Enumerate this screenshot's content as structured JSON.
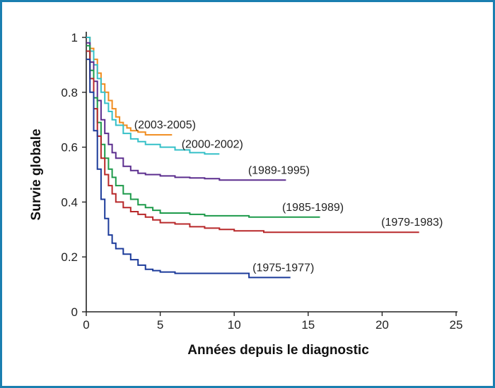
{
  "chart_data": {
    "type": "line",
    "title": "",
    "xlabel": "Années depuis le diagnostic",
    "ylabel": "Survie globale",
    "xlim": [
      0,
      25
    ],
    "ylim": [
      0,
      1
    ],
    "xticks": [
      0,
      5,
      10,
      15,
      20,
      25
    ],
    "yticks": [
      0,
      0.2,
      0.4,
      0.6,
      0.8,
      1
    ],
    "ytick_labels": [
      "0",
      "0.2",
      "0.4",
      "0.6",
      "0.8",
      "1"
    ],
    "grid": false,
    "legend": "none (series labelled inline at line ends)",
    "step": true,
    "series": [
      {
        "name": "(2003-2005)",
        "color": "#f08c1e",
        "x": [
          0,
          0.25,
          0.5,
          0.75,
          1,
          1.25,
          1.5,
          1.75,
          2,
          2.25,
          2.5,
          2.75,
          3,
          3.5,
          4,
          4.5,
          5,
          5.8
        ],
        "y": [
          1,
          0.96,
          0.92,
          0.87,
          0.83,
          0.8,
          0.77,
          0.74,
          0.71,
          0.69,
          0.68,
          0.67,
          0.66,
          0.655,
          0.645,
          0.645,
          0.645,
          0.645
        ]
      },
      {
        "name": "(2000-2002)",
        "color": "#35c0c8",
        "x": [
          0,
          0.25,
          0.5,
          0.75,
          1,
          1.25,
          1.5,
          1.75,
          2,
          2.5,
          3,
          3.5,
          4,
          5,
          6,
          7,
          8,
          9
        ],
        "y": [
          1,
          0.95,
          0.9,
          0.85,
          0.8,
          0.76,
          0.73,
          0.7,
          0.68,
          0.65,
          0.63,
          0.62,
          0.61,
          0.6,
          0.59,
          0.58,
          0.575,
          0.575
        ]
      },
      {
        "name": "(1989-1995)",
        "color": "#5b2d8e",
        "x": [
          0,
          0.25,
          0.5,
          0.75,
          1,
          1.25,
          1.5,
          1.75,
          2,
          2.5,
          3,
          3.5,
          4,
          5,
          6,
          7,
          8,
          9,
          10,
          12,
          13.5
        ],
        "y": [
          0.98,
          0.91,
          0.84,
          0.77,
          0.7,
          0.65,
          0.61,
          0.58,
          0.56,
          0.53,
          0.515,
          0.505,
          0.5,
          0.495,
          0.49,
          0.488,
          0.485,
          0.48,
          0.48,
          0.48,
          0.48
        ]
      },
      {
        "name": "(1985-1989)",
        "color": "#1d9a4a",
        "x": [
          0,
          0.25,
          0.5,
          0.75,
          1,
          1.25,
          1.5,
          1.75,
          2,
          2.5,
          3,
          3.5,
          4,
          4.5,
          5,
          6,
          7,
          8,
          9,
          10,
          11,
          12,
          13,
          14,
          15,
          15.8
        ],
        "y": [
          0.97,
          0.88,
          0.78,
          0.69,
          0.61,
          0.56,
          0.52,
          0.49,
          0.46,
          0.43,
          0.41,
          0.39,
          0.38,
          0.37,
          0.36,
          0.36,
          0.355,
          0.35,
          0.35,
          0.35,
          0.345,
          0.345,
          0.345,
          0.345,
          0.345,
          0.345
        ]
      },
      {
        "name": "(1979-1983)",
        "color": "#b8282a",
        "x": [
          0,
          0.25,
          0.5,
          0.75,
          1,
          1.25,
          1.5,
          1.75,
          2,
          2.5,
          3,
          3.5,
          4,
          4.5,
          5,
          6,
          7,
          8,
          9,
          10,
          12,
          15,
          18,
          20,
          22.5
        ],
        "y": [
          0.95,
          0.85,
          0.74,
          0.64,
          0.56,
          0.5,
          0.46,
          0.43,
          0.4,
          0.38,
          0.365,
          0.355,
          0.345,
          0.335,
          0.325,
          0.32,
          0.31,
          0.305,
          0.3,
          0.295,
          0.29,
          0.29,
          0.29,
          0.29,
          0.29
        ]
      },
      {
        "name": "(1975-1977)",
        "color": "#1b3a9a",
        "x": [
          0,
          0.25,
          0.5,
          0.75,
          1,
          1.25,
          1.5,
          1.75,
          2,
          2.5,
          3,
          3.5,
          4,
          4.5,
          5,
          6,
          7,
          8,
          9,
          10,
          11,
          12,
          13,
          13.8
        ],
        "y": [
          0.92,
          0.8,
          0.66,
          0.52,
          0.41,
          0.34,
          0.28,
          0.25,
          0.23,
          0.21,
          0.19,
          0.17,
          0.155,
          0.15,
          0.145,
          0.14,
          0.14,
          0.14,
          0.14,
          0.14,
          0.125,
          0.125,
          0.125,
          0.125
        ]
      }
    ]
  }
}
